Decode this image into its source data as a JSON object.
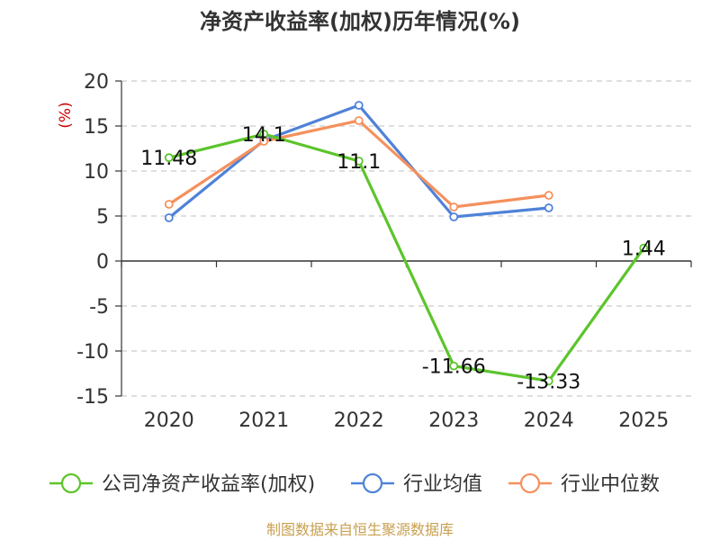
{
  "chart_data": {
    "type": "line",
    "title": "净资产收益率(加权)历年情况(%)",
    "ylabel": "(%)",
    "xlabel": "",
    "categories": [
      "2020",
      "2021",
      "2022",
      "2023",
      "2024",
      "2025"
    ],
    "ylim": [
      -15,
      20
    ],
    "yticks": [
      20,
      15,
      10,
      5,
      0,
      -5,
      -10,
      -15
    ],
    "grid": true,
    "legend_position": "bottom",
    "series": [
      {
        "name": "公司净资产收益率(加权)",
        "color": "#5cc42b",
        "values": [
          11.48,
          14.1,
          11.1,
          -11.66,
          -13.33,
          1.44
        ],
        "labels": [
          "11.48",
          "14.1",
          "11.1",
          "-11.66",
          "-13.33",
          "1.44"
        ]
      },
      {
        "name": "行业均值",
        "color": "#4f82d8",
        "values": [
          4.8,
          13.4,
          17.3,
          4.9,
          5.9,
          null
        ]
      },
      {
        "name": "行业中位数",
        "color": "#f5905c",
        "values": [
          6.3,
          13.3,
          15.6,
          6.0,
          7.3,
          null
        ]
      }
    ],
    "source": "制图数据来自恒生聚源数据库"
  }
}
